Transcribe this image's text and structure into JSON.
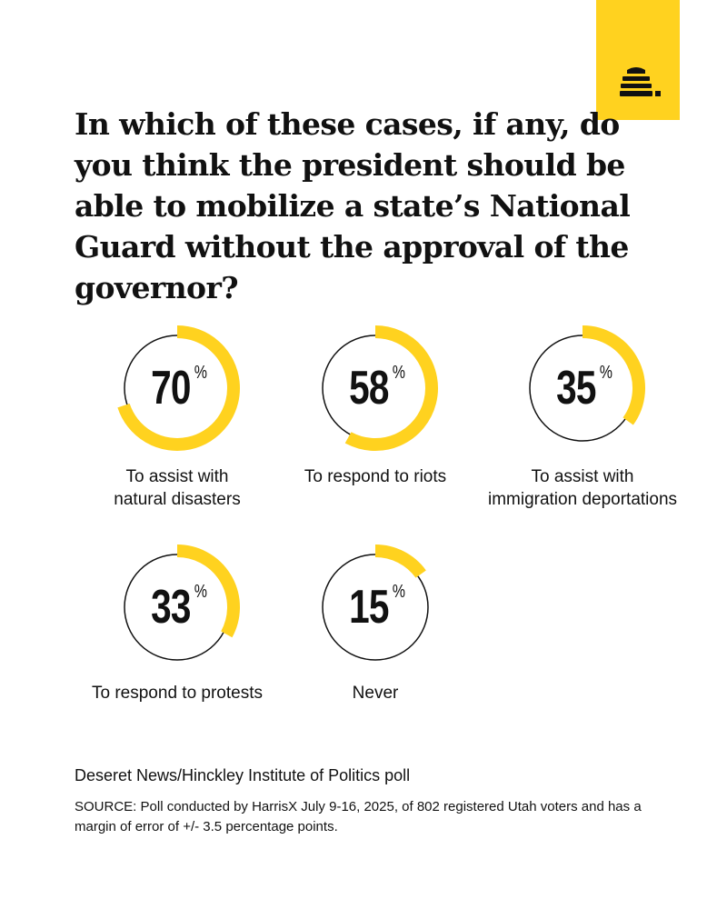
{
  "title": "In which of these cases, if any, do you think the president should be able to mobilize a state’s National Guard without the approval of the governor?",
  "chart_data": {
    "type": "donut",
    "unit": "%",
    "items": [
      {
        "label": "To assist with natural disasters",
        "label_lines": [
          "To assist with",
          "natural disasters"
        ],
        "value": 70
      },
      {
        "label": "To respond to riots",
        "label_lines": [
          "To respond to riots"
        ],
        "value": 58
      },
      {
        "label": "To assist with immigration deportations",
        "label_lines": [
          "To assist with",
          "immigration deportations"
        ],
        "value": 35
      },
      {
        "label": "To respond to protests",
        "label_lines": [
          "To respond to protests"
        ],
        "value": 33
      },
      {
        "label": "Never",
        "label_lines": [
          "Never"
        ],
        "value": 15
      }
    ]
  },
  "colors": {
    "accent": "#FFD21F",
    "text": "#111111",
    "background": "#ffffff"
  },
  "logo": {
    "icon": "beehive-icon"
  },
  "source": {
    "title": "Deseret News/Hinckley Institute of Politics poll",
    "note": "SOURCE: Poll conducted by HarrisX July 9-16, 2025, of 802 registered Utah voters and has a margin of error of +/- 3.5 percentage points."
  }
}
